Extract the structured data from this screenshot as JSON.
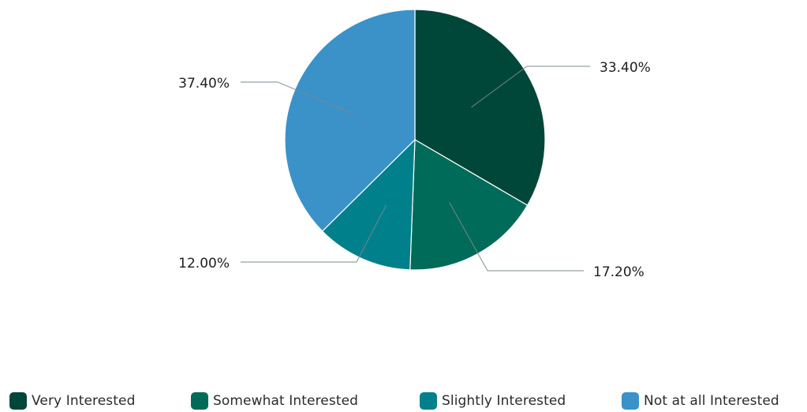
{
  "chart_data": {
    "type": "pie",
    "title": "",
    "slices": [
      {
        "label": "Very Interested",
        "value": 33.4,
        "value_label": "33.40%",
        "color": "#00473a"
      },
      {
        "label": "Somewhat Interested",
        "value": 17.2,
        "value_label": "17.20%",
        "color": "#006b58"
      },
      {
        "label": "Slightly Interested",
        "value": 12.0,
        "value_label": "12.00%",
        "color": "#00808a"
      },
      {
        "label": "Not at all Interested",
        "value": 37.4,
        "value_label": "37.40%",
        "color": "#3a92c8"
      }
    ],
    "start_angle": "12 o'clock",
    "direction": "clockwise",
    "legend_position": "bottom"
  }
}
